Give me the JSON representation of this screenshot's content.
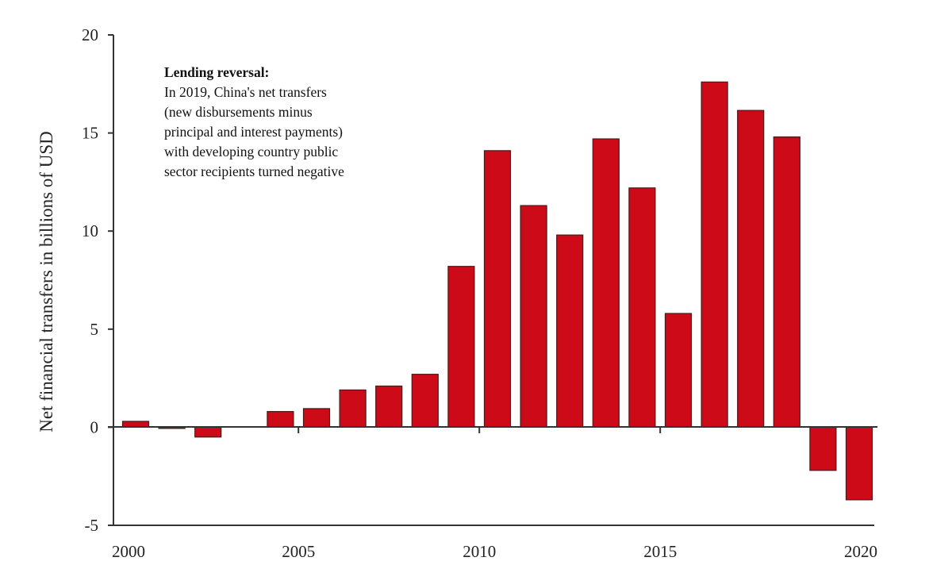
{
  "chart_data": {
    "type": "bar",
    "title": "",
    "xlabel": "",
    "ylabel": "Net financial transfers in billions of USD",
    "ylim": [
      -5,
      20
    ],
    "yticks": [
      -5,
      0,
      5,
      10,
      15,
      20
    ],
    "xticks": [
      2000,
      2005,
      2010,
      2015,
      2020
    ],
    "categories": [
      2000,
      2001,
      2002,
      2003,
      2004,
      2005,
      2006,
      2007,
      2008,
      2009,
      2010,
      2011,
      2012,
      2013,
      2014,
      2015,
      2016,
      2017,
      2018,
      2019,
      2020
    ],
    "values": [
      0.3,
      -0.05,
      -0.5,
      0,
      0.8,
      0.95,
      1.9,
      2.1,
      2.7,
      8.2,
      14.1,
      11.3,
      9.8,
      14.7,
      12.2,
      5.8,
      17.6,
      16.15,
      14.8,
      -2.2,
      -3.7
    ],
    "bar_color": "#cc0a18",
    "grid": false,
    "annotation": {
      "title": "Lending reversal:",
      "lines": [
        "In 2019, China's net transfers",
        "(new disbursements minus",
        "principal and interest payments)",
        "with developing country public",
        "sector recipients turned negative"
      ]
    }
  }
}
